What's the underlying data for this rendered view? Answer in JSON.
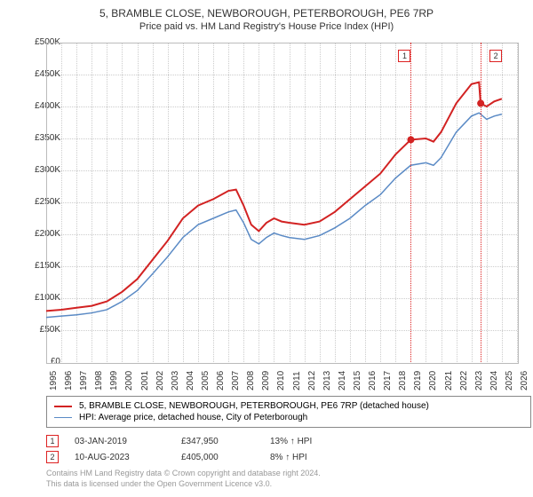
{
  "title": "5, BRAMBLE CLOSE, NEWBOROUGH, PETERBOROUGH, PE6 7RP",
  "subtitle": "Price paid vs. HM Land Registry's House Price Index (HPI)",
  "chart": {
    "type": "line",
    "background_color": "#ffffff",
    "grid_color": "#cccccc",
    "border_color": "#bbbbbb",
    "ylim": [
      0,
      500000
    ],
    "ytick_step": 50000,
    "yticks": [
      "£0",
      "£50K",
      "£100K",
      "£150K",
      "£200K",
      "£250K",
      "£300K",
      "£350K",
      "£400K",
      "£450K",
      "£500K"
    ],
    "xlim": [
      1995,
      2026
    ],
    "xticks": [
      1995,
      1996,
      1997,
      1998,
      1999,
      2000,
      2001,
      2002,
      2003,
      2004,
      2005,
      2006,
      2007,
      2008,
      2009,
      2010,
      2011,
      2012,
      2013,
      2014,
      2015,
      2016,
      2017,
      2018,
      2019,
      2020,
      2021,
      2022,
      2023,
      2024,
      2025,
      2026
    ],
    "series": [
      {
        "name": "price_paid",
        "color": "#d22222",
        "line_width": 2,
        "data": [
          [
            1995,
            80000
          ],
          [
            1996,
            82000
          ],
          [
            1997,
            85000
          ],
          [
            1998,
            88000
          ],
          [
            1999,
            95000
          ],
          [
            2000,
            110000
          ],
          [
            2001,
            130000
          ],
          [
            2002,
            160000
          ],
          [
            2003,
            190000
          ],
          [
            2004,
            225000
          ],
          [
            2005,
            245000
          ],
          [
            2006,
            255000
          ],
          [
            2007,
            268000
          ],
          [
            2007.5,
            270000
          ],
          [
            2008,
            245000
          ],
          [
            2008.5,
            215000
          ],
          [
            2009,
            205000
          ],
          [
            2009.5,
            218000
          ],
          [
            2010,
            225000
          ],
          [
            2010.5,
            220000
          ],
          [
            2011,
            218000
          ],
          [
            2012,
            215000
          ],
          [
            2013,
            220000
          ],
          [
            2014,
            235000
          ],
          [
            2015,
            255000
          ],
          [
            2016,
            275000
          ],
          [
            2017,
            295000
          ],
          [
            2018,
            325000
          ],
          [
            2019,
            348000
          ],
          [
            2020,
            350000
          ],
          [
            2020.5,
            345000
          ],
          [
            2021,
            360000
          ],
          [
            2022,
            405000
          ],
          [
            2023,
            435000
          ],
          [
            2023.5,
            438000
          ],
          [
            2023.6,
            405000
          ],
          [
            2024,
            400000
          ],
          [
            2024.5,
            408000
          ],
          [
            2025,
            412000
          ]
        ]
      },
      {
        "name": "hpi",
        "color": "#5a8ac5",
        "line_width": 1.5,
        "data": [
          [
            1995,
            70000
          ],
          [
            1996,
            72000
          ],
          [
            1997,
            74000
          ],
          [
            1998,
            77000
          ],
          [
            1999,
            82000
          ],
          [
            2000,
            95000
          ],
          [
            2001,
            112000
          ],
          [
            2002,
            138000
          ],
          [
            2003,
            165000
          ],
          [
            2004,
            195000
          ],
          [
            2005,
            215000
          ],
          [
            2006,
            225000
          ],
          [
            2007,
            235000
          ],
          [
            2007.5,
            238000
          ],
          [
            2008,
            218000
          ],
          [
            2008.5,
            192000
          ],
          [
            2009,
            185000
          ],
          [
            2009.5,
            195000
          ],
          [
            2010,
            202000
          ],
          [
            2010.5,
            198000
          ],
          [
            2011,
            195000
          ],
          [
            2012,
            192000
          ],
          [
            2013,
            198000
          ],
          [
            2014,
            210000
          ],
          [
            2015,
            225000
          ],
          [
            2016,
            245000
          ],
          [
            2017,
            262000
          ],
          [
            2018,
            288000
          ],
          [
            2019,
            308000
          ],
          [
            2020,
            312000
          ],
          [
            2020.5,
            308000
          ],
          [
            2021,
            320000
          ],
          [
            2022,
            360000
          ],
          [
            2023,
            385000
          ],
          [
            2023.5,
            390000
          ],
          [
            2024,
            380000
          ],
          [
            2024.5,
            385000
          ],
          [
            2025,
            388000
          ]
        ]
      }
    ],
    "markers": [
      {
        "n": "1",
        "x": 2019.01,
        "y": 347950,
        "dot_color": "#d22222",
        "label_offset_x": -8
      },
      {
        "n": "2",
        "x": 2023.61,
        "y": 405000,
        "dot_color": "#d22222",
        "label_offset_x": 16
      }
    ]
  },
  "legend": [
    {
      "color": "#d22222",
      "width": 2,
      "label": "5, BRAMBLE CLOSE, NEWBOROUGH, PETERBOROUGH, PE6 7RP (detached house)"
    },
    {
      "color": "#5a8ac5",
      "width": 1.5,
      "label": "HPI: Average price, detached house, City of Peterborough"
    }
  ],
  "events": [
    {
      "n": "1",
      "date": "03-JAN-2019",
      "price": "£347,950",
      "pct": "13% ↑ HPI"
    },
    {
      "n": "2",
      "date": "10-AUG-2023",
      "price": "£405,000",
      "pct": "8% ↑ HPI"
    }
  ],
  "footer_line1": "Contains HM Land Registry data © Crown copyright and database right 2024.",
  "footer_line2": "This data is licensed under the Open Government Licence v3.0.",
  "label_fontsize": 10,
  "title_fontsize": 12
}
